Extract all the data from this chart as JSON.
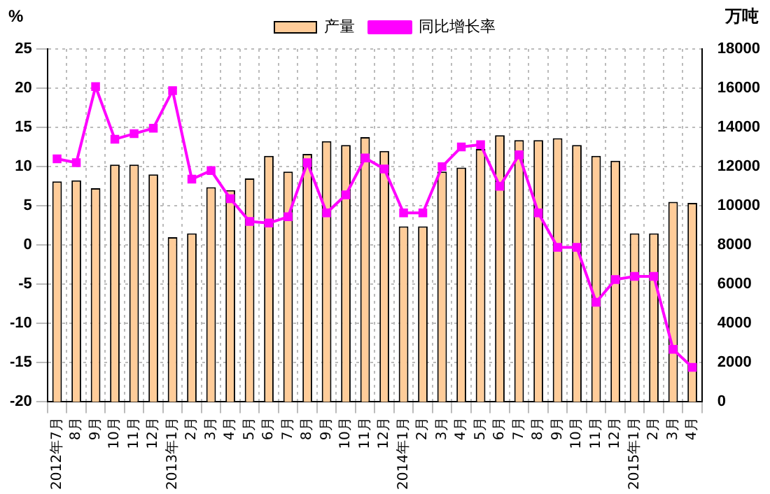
{
  "chart_data": {
    "type": "bar",
    "ylabel": "%",
    "y2label": "万吨",
    "categories": [
      "2012年7月",
      "8月",
      "9月",
      "10月",
      "11月",
      "12月",
      "2013年1月",
      "2月",
      "3月",
      "4月",
      "5月",
      "6月",
      "7月",
      "8月",
      "9月",
      "10月",
      "11月",
      "12月",
      "2014年1月",
      "2月",
      "3月",
      "4月",
      "5月",
      "6月",
      "7月",
      "8月",
      "9月",
      "10月",
      "11月",
      "12月",
      "2015年1月",
      "2月",
      "3月",
      "4月"
    ],
    "series": [
      {
        "name": "产量",
        "axis": "y2",
        "color": "#ffcc99",
        "values": [
          11250,
          11300,
          10900,
          12100,
          12100,
          11600,
          8400,
          8600,
          10950,
          10800,
          11400,
          12550,
          11750,
          12650,
          13300,
          13100,
          13500,
          12800,
          8950,
          8950,
          11750,
          11950,
          12900,
          13600,
          13350,
          13350,
          13450,
          13100,
          12550,
          12300,
          8600,
          8600,
          10200,
          10150
        ]
      },
      {
        "name": "同比增长率",
        "type": "line",
        "color": "#ff00ff",
        "marker": "square",
        "values": [
          11.0,
          10.5,
          20.2,
          13.5,
          14.2,
          14.9,
          19.7,
          8.4,
          9.5,
          5.9,
          3.0,
          2.8,
          3.6,
          10.5,
          4.1,
          6.4,
          11.1,
          9.7,
          4.1,
          4.1,
          10.0,
          12.5,
          12.8,
          7.5,
          11.5,
          4.1,
          -0.3,
          -0.3,
          -7.3,
          -4.4,
          -4.0,
          -4.0,
          -13.3,
          -15.6
        ]
      }
    ],
    "ylim": [
      -20,
      25
    ],
    "yticks": [
      -20,
      -15,
      -10,
      -5,
      0,
      5,
      10,
      15,
      20,
      25
    ],
    "y2lim": [
      0,
      18000
    ],
    "y2ticks": [
      0,
      2000,
      4000,
      6000,
      8000,
      10000,
      12000,
      14000,
      16000,
      18000
    ],
    "grid": true,
    "legend": "top"
  }
}
